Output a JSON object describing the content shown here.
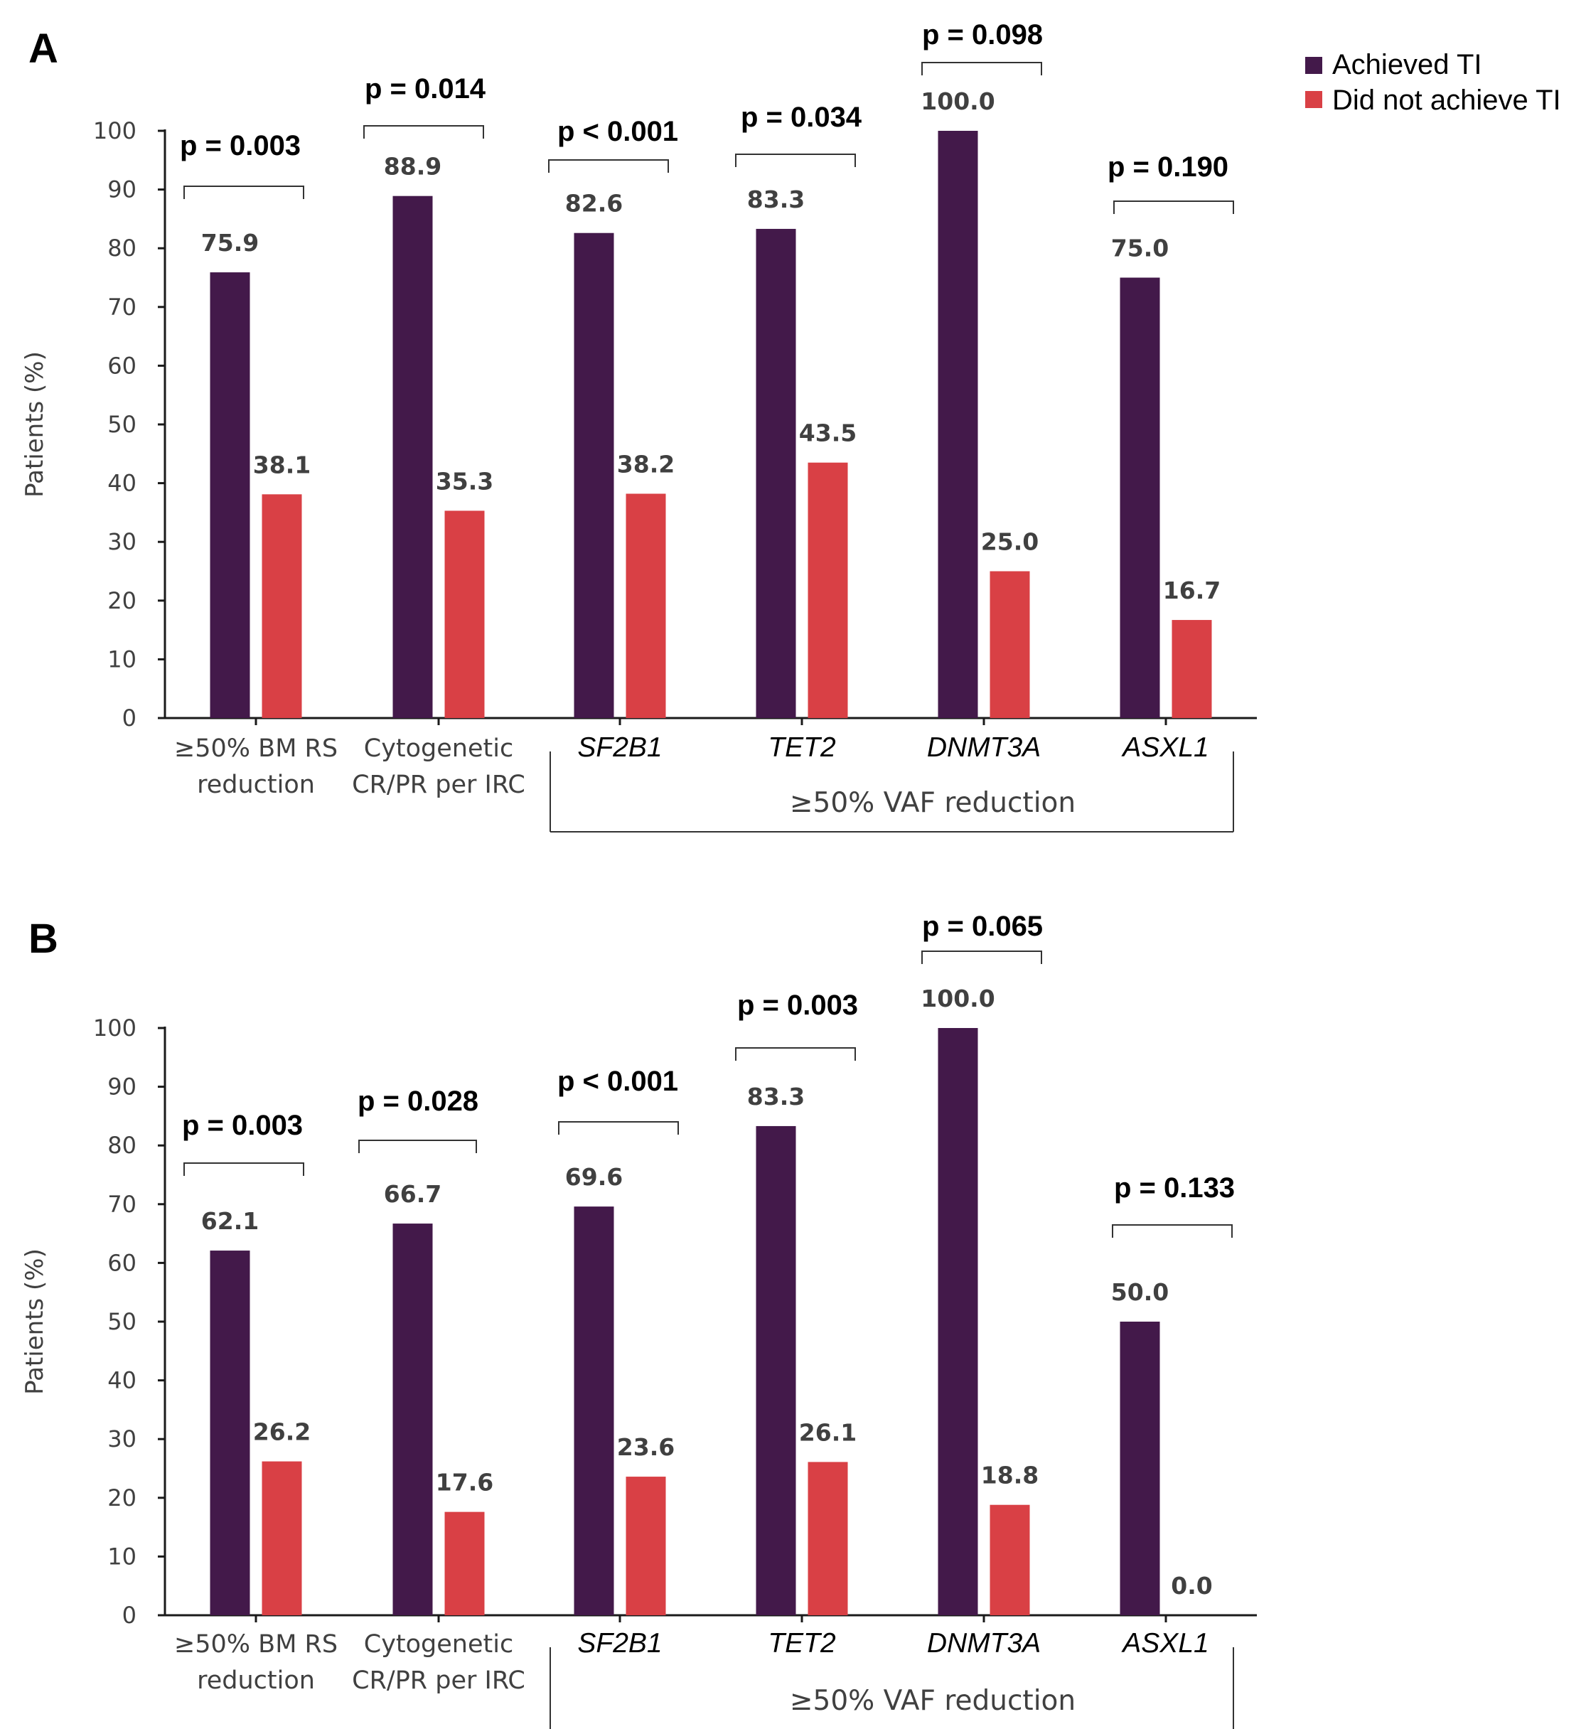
{
  "legend": {
    "achieved": "Achieved TI",
    "not_achieved": "Did not achieve TI"
  },
  "colors": {
    "achieved": "#43194a",
    "not_achieved": "#d94045"
  },
  "chart_data": [
    {
      "type": "bar",
      "panel": "A",
      "ylabel": "Patients (%)",
      "ylim": [
        0,
        100
      ],
      "yticks": [
        0,
        10,
        20,
        30,
        40,
        50,
        60,
        70,
        80,
        90,
        100
      ],
      "categories": [
        {
          "lines": [
            "≥50% BM RS",
            "reduction"
          ],
          "italic": false
        },
        {
          "lines": [
            "Cytogenetic",
            "CR/PR per IRC"
          ],
          "italic": false
        },
        {
          "lines": [
            "SF2B1"
          ],
          "italic": true
        },
        {
          "lines": [
            "TET2"
          ],
          "italic": true
        },
        {
          "lines": [
            "DNMT3A"
          ],
          "italic": true
        },
        {
          "lines": [
            "ASXL1"
          ],
          "italic": true
        }
      ],
      "group_label": "≥50% VAF reduction",
      "series": [
        {
          "name": "Achieved TI",
          "values": [
            75.9,
            88.9,
            82.6,
            83.3,
            100.0,
            75.0
          ],
          "labels": [
            "75.9",
            "88.9",
            "82.6",
            "83.3",
            "100.0",
            "75.0"
          ]
        },
        {
          "name": "Did not achieve TI",
          "values": [
            38.1,
            35.3,
            38.2,
            43.5,
            25.0,
            16.7
          ],
          "labels": [
            "38.1",
            "35.3",
            "38.2",
            "43.5",
            "25.0",
            "16.7"
          ]
        }
      ],
      "p_values": [
        "p = 0.003",
        "p = 0.014",
        "p < 0.001",
        "p = 0.034",
        "p = 0.098",
        "p = 0.190"
      ]
    },
    {
      "type": "bar",
      "panel": "B",
      "ylabel": "Patients (%)",
      "ylim": [
        0,
        100
      ],
      "yticks": [
        0,
        10,
        20,
        30,
        40,
        50,
        60,
        70,
        80,
        90,
        100
      ],
      "categories": [
        {
          "lines": [
            "≥50% BM RS",
            "reduction"
          ],
          "italic": false
        },
        {
          "lines": [
            "Cytogenetic",
            "CR/PR per IRC"
          ],
          "italic": false
        },
        {
          "lines": [
            "SF2B1"
          ],
          "italic": true
        },
        {
          "lines": [
            "TET2"
          ],
          "italic": true
        },
        {
          "lines": [
            "DNMT3A"
          ],
          "italic": true
        },
        {
          "lines": [
            "ASXL1"
          ],
          "italic": true
        }
      ],
      "group_label": "≥50% VAF reduction",
      "series": [
        {
          "name": "Achieved TI",
          "values": [
            62.1,
            66.7,
            69.6,
            83.3,
            100.0,
            50.0
          ],
          "labels": [
            "62.1",
            "66.7",
            "69.6",
            "83.3",
            "100.0",
            "50.0"
          ]
        },
        {
          "name": "Did not achieve TI",
          "values": [
            26.2,
            17.6,
            23.6,
            26.1,
            18.8,
            0.0
          ],
          "labels": [
            "26.2",
            "17.6",
            "23.6",
            "26.1",
            "18.8",
            "0.0"
          ]
        }
      ],
      "p_values": [
        "p = 0.003",
        "p = 0.028",
        "p < 0.001",
        "p = 0.003",
        "p = 0.065",
        "p = 0.133"
      ]
    }
  ]
}
